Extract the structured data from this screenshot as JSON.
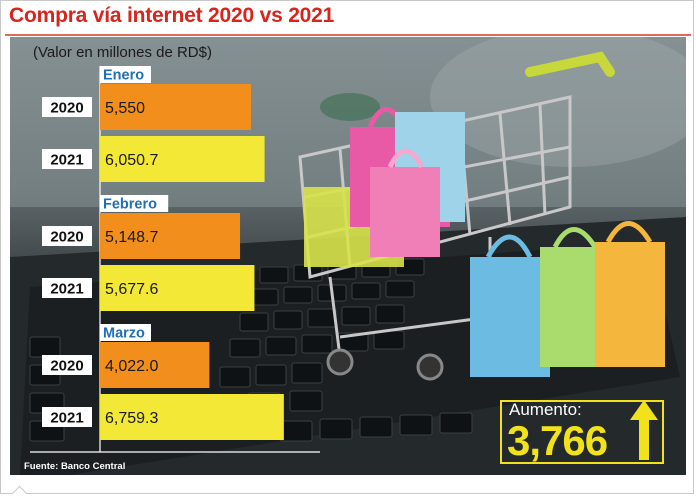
{
  "title": "Compra vía internet 2020 vs 2021",
  "subtitle": "(Valor en millones de RD$)",
  "source": "Fuente: Banco Central",
  "highlight": {
    "label": "Aumento:",
    "value": "3,766"
  },
  "colors": {
    "title": "#d9241c",
    "bar_2020": "#f28e1c",
    "bar_2021": "#f2e835",
    "highlight": "#f2e21c"
  },
  "chart_data": {
    "type": "bar",
    "orientation": "horizontal",
    "groups": [
      {
        "label": "Enero",
        "bars": [
          {
            "year": "2020",
            "value": 5550,
            "label": "5,550"
          },
          {
            "year": "2021",
            "value": 6050.7,
            "label": "6,050.7"
          }
        ]
      },
      {
        "label": "Febrero",
        "bars": [
          {
            "year": "2020",
            "value": 5148.7,
            "label": "5,148.7"
          },
          {
            "year": "2021",
            "value": 5677.6,
            "label": "5,677.6"
          }
        ]
      },
      {
        "label": "Marzo",
        "bars": [
          {
            "year": "2020",
            "value": 4022.0,
            "label": "4,022.0"
          },
          {
            "year": "2021",
            "value": 6759.3,
            "label": "6,759.3"
          }
        ]
      }
    ],
    "grid": false
  }
}
